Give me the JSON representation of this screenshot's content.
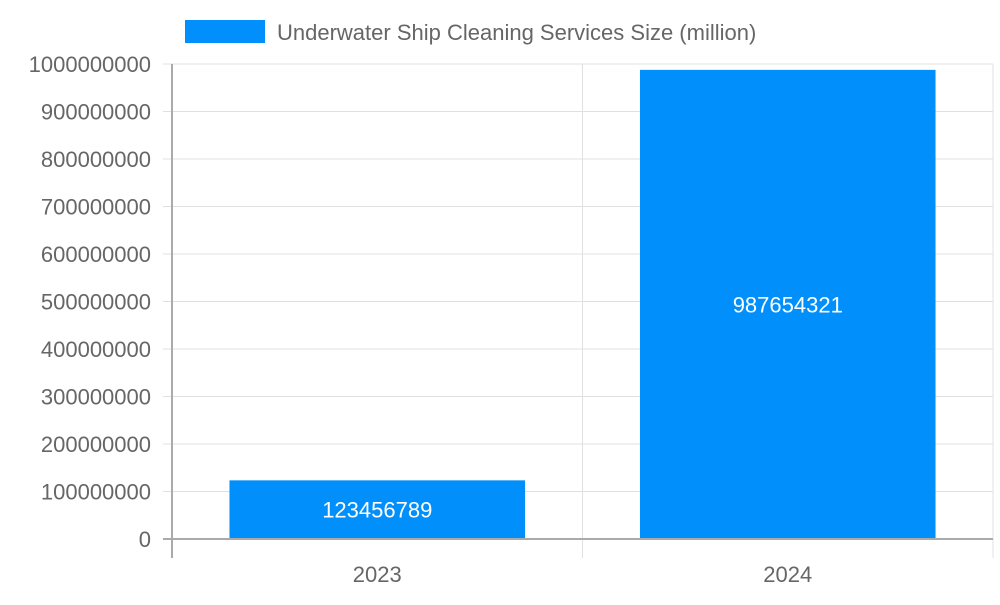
{
  "chart_data": {
    "type": "bar",
    "categories": [
      "2023",
      "2024"
    ],
    "series": [
      {
        "name": "Underwater Ship Cleaning Services Size (million)",
        "values": [
          123456789,
          987654321
        ],
        "color": "#008ffb"
      }
    ],
    "data_labels": [
      "123456789",
      "987654321"
    ],
    "ylim": [
      0,
      1000000000
    ],
    "yticks": [
      "0",
      "100000000",
      "200000000",
      "300000000",
      "400000000",
      "500000000",
      "600000000",
      "700000000",
      "800000000",
      "900000000",
      "1000000000"
    ],
    "grid": true,
    "legend_position": "top",
    "xlabel": "",
    "ylabel": ""
  }
}
